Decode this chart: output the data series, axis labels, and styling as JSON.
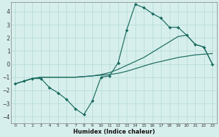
{
  "xlabel": "Humidex (Indice chaleur)",
  "background_color": "#d7efec",
  "grid_color": "#afd8d3",
  "line_color": "#1a6b60",
  "xlim": [
    -0.5,
    23.5
  ],
  "ylim": [
    -4.5,
    4.7
  ],
  "yticks": [
    -4,
    -3,
    -2,
    -1,
    0,
    1,
    2,
    3,
    4
  ],
  "xticks": [
    0,
    1,
    2,
    3,
    4,
    5,
    6,
    7,
    8,
    9,
    10,
    11,
    12,
    13,
    14,
    15,
    16,
    17,
    18,
    19,
    20,
    21,
    22,
    23
  ],
  "series": [
    {
      "x": [
        0,
        1,
        2,
        3,
        4,
        5,
        6,
        7,
        8,
        9,
        10,
        11,
        12,
        13,
        14,
        15,
        16,
        17,
        18,
        19,
        20,
        21,
        22,
        23
      ],
      "y": [
        -1.5,
        -1.3,
        -1.1,
        -1.0,
        -1.0,
        -1.0,
        -1.0,
        -1.0,
        -0.95,
        -0.9,
        -0.85,
        -0.8,
        -0.7,
        -0.55,
        -0.35,
        -0.15,
        0.05,
        0.2,
        0.35,
        0.5,
        0.6,
        0.7,
        0.75,
        0.8
      ],
      "marker": false,
      "lw": 0.9
    },
    {
      "x": [
        0,
        1,
        2,
        3,
        4,
        5,
        6,
        7,
        8,
        9,
        10,
        11,
        12,
        13,
        14,
        15,
        16,
        17,
        18,
        19,
        20,
        21,
        22,
        23
      ],
      "y": [
        -1.5,
        -1.3,
        -1.1,
        -1.0,
        -1.0,
        -1.0,
        -1.0,
        -1.0,
        -0.95,
        -0.9,
        -0.8,
        -0.65,
        -0.4,
        -0.1,
        0.2,
        0.5,
        0.9,
        1.3,
        1.7,
        2.1,
        2.2,
        1.5,
        1.3,
        0.0
      ],
      "marker": false,
      "lw": 0.9
    },
    {
      "x": [
        0,
        1,
        2,
        3,
        4,
        5,
        6,
        7,
        8,
        9,
        10,
        11,
        12,
        13,
        14,
        15,
        16,
        17,
        18,
        19,
        20,
        21,
        22,
        23
      ],
      "y": [
        -1.5,
        -1.3,
        -1.1,
        -1.1,
        -1.8,
        -2.2,
        -2.7,
        -3.4,
        -3.85,
        -2.8,
        -1.0,
        -0.9,
        0.1,
        2.6,
        4.55,
        4.3,
        3.85,
        3.5,
        2.8,
        2.8,
        2.2,
        1.5,
        1.3,
        0.0
      ],
      "marker": true,
      "lw": 0.9
    }
  ]
}
